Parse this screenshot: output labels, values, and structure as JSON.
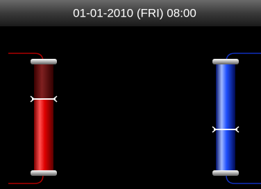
{
  "header": {
    "title": "01-01-2010 (FRI) 08:00"
  }
}
